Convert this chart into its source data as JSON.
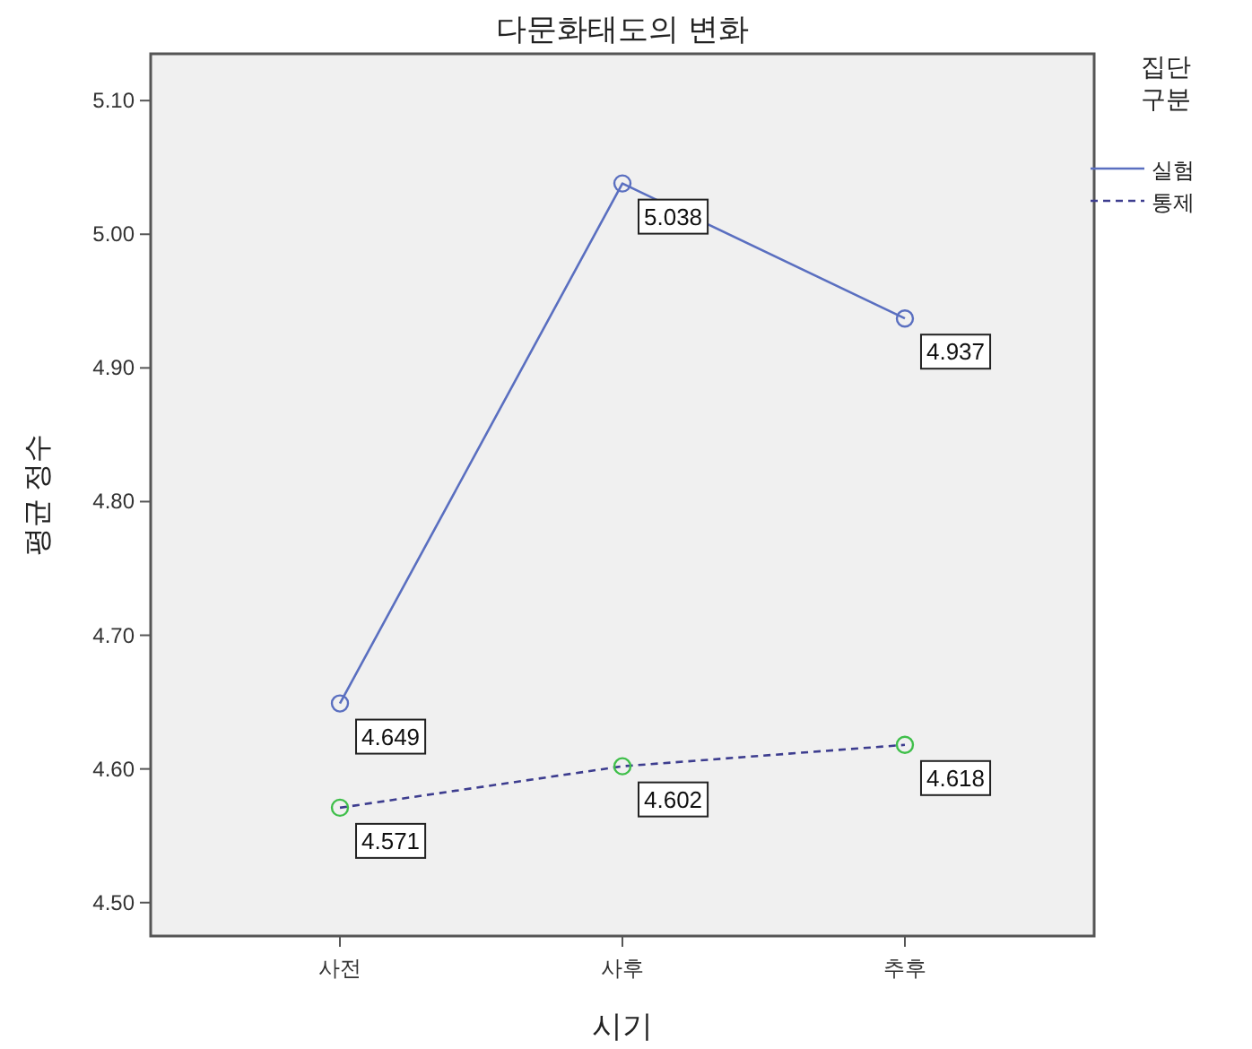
{
  "chart_data": {
    "type": "line",
    "title": "다문화태도의 변화",
    "xlabel": "시기",
    "ylabel": "평균 정수",
    "legend_title": "집단\n구분",
    "categories": [
      "사전",
      "사후",
      "추후"
    ],
    "series": [
      {
        "name": "실험",
        "color": "#5a6fc0",
        "colors": [
          "#5a6fc0",
          "#5a6fc0",
          "#5a6fc0"
        ],
        "line_style": "solid",
        "values": [
          4.649,
          5.038,
          4.937
        ]
      },
      {
        "name": "통제",
        "color": "#3d3d8f",
        "colors": [
          "#3fbf4a",
          "#3fbf4a",
          "#3fbf4a"
        ],
        "line_style": "dashed",
        "values": [
          4.571,
          4.602,
          4.618
        ]
      }
    ],
    "ylim": [
      4.475,
      5.135
    ],
    "yticks": [
      {
        "value": 4.5,
        "label": "4.50"
      },
      {
        "value": 4.6,
        "label": "4.60"
      },
      {
        "value": 4.7,
        "label": "4.70"
      },
      {
        "value": 4.8,
        "label": "4.80"
      },
      {
        "value": 4.9,
        "label": "4.90"
      },
      {
        "value": 5.0,
        "label": "5.00"
      },
      {
        "value": 5.1,
        "label": "5.10"
      }
    ],
    "marker": "circle",
    "data_labels": true,
    "legend": "top right",
    "grid": false
  }
}
